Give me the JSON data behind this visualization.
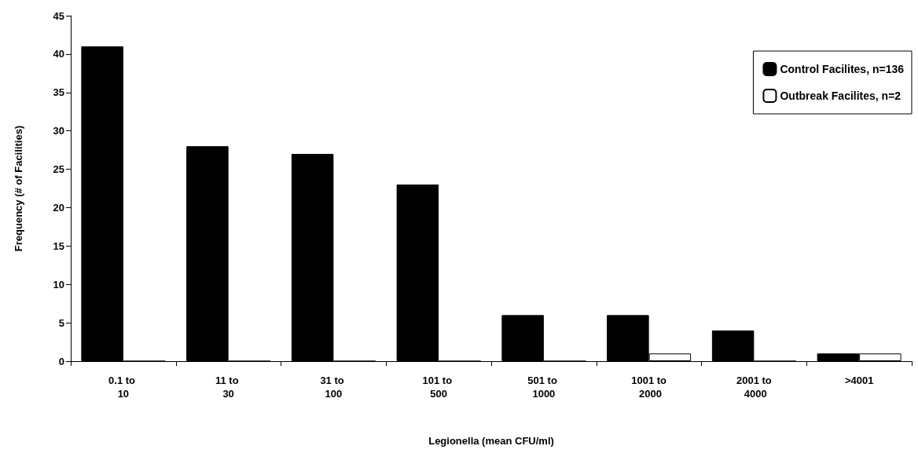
{
  "chart_data": {
    "type": "bar",
    "xlabel": "Legionella (mean CFU/ml)",
    "ylabel": "Frequency (# of Facilities)",
    "categories": [
      "0.1 to 10",
      "11 to 30",
      "31 to 100",
      "101 to 500",
      "501 to 1000",
      "1001 to 2000",
      "2001 to 4000",
      ">4001"
    ],
    "series": [
      {
        "name": "Control Facilites, n=136",
        "color": "#000000",
        "values": [
          41,
          28,
          27,
          23,
          6,
          6,
          4,
          1
        ]
      },
      {
        "name": "Outbreak Facilites, n=2",
        "color": "#ffffff",
        "values": [
          0,
          0,
          0,
          0,
          0,
          1,
          0,
          1
        ]
      }
    ],
    "ylim": [
      0,
      45
    ],
    "yticks": [
      0,
      5,
      10,
      15,
      20,
      25,
      30,
      35,
      40,
      45
    ],
    "grid": false,
    "legend": "top right"
  }
}
